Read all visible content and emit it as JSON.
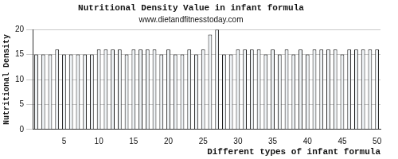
{
  "chart_data": {
    "type": "bar",
    "title": "Nutritional Density Value in infant formula",
    "subtitle": "www.dietandfitnesstoday.com",
    "x_label": "Different types of infant formula",
    "y_label": "Nutritional Density",
    "categories": [
      null,
      null,
      null,
      null,
      "5",
      null,
      null,
      null,
      null,
      "10",
      null,
      null,
      null,
      null,
      "15",
      null,
      null,
      null,
      null,
      "20",
      null,
      null,
      null,
      null,
      "25",
      null,
      null,
      null,
      null,
      "30",
      null,
      null,
      null,
      null,
      "35",
      null,
      null,
      null,
      null,
      "40",
      null,
      null,
      null,
      null,
      "45",
      null,
      null,
      null,
      null,
      "50"
    ],
    "values": [
      15,
      15,
      15,
      16,
      15,
      15,
      15,
      15,
      15,
      16,
      16,
      16,
      16,
      15,
      16,
      16,
      16,
      16,
      15,
      16,
      15,
      15,
      16,
      15,
      16,
      19,
      20,
      15,
      15,
      16,
      16,
      16,
      16,
      15,
      16,
      15,
      16,
      15,
      16,
      15,
      16,
      16,
      16,
      16,
      15,
      16,
      16,
      16,
      16,
      16
    ],
    "color": "#eef2f5",
    "ylim": [
      0,
      20
    ],
    "yticks": [
      0,
      5,
      10,
      15,
      20
    ],
    "grid": true
  }
}
